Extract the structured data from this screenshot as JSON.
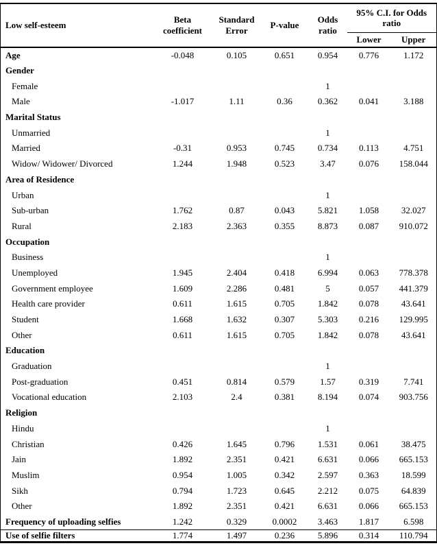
{
  "table": {
    "header": {
      "col_label": "Low self-esteem",
      "col_beta": "Beta coefficient",
      "col_se": "Standard Error",
      "col_p": "P-value",
      "col_or": "Odds ratio",
      "col_ci": "95% C.I. for Odds ratio",
      "col_ci_lower": "Lower",
      "col_ci_upper": "Upper"
    },
    "rows": [
      {
        "label": "Age",
        "bold": true,
        "beta": "-0.048",
        "se": "0.105",
        "p": "0.651",
        "or": "0.954",
        "lower": "0.776",
        "upper": "1.172"
      },
      {
        "label": "Gender",
        "bold": true,
        "beta": "",
        "se": "",
        "p": "",
        "or": "",
        "lower": "",
        "upper": ""
      },
      {
        "label": "Female",
        "bold": false,
        "beta": "",
        "se": "",
        "p": "",
        "or": "1",
        "lower": "",
        "upper": ""
      },
      {
        "label": "Male",
        "bold": false,
        "beta": "-1.017",
        "se": "1.11",
        "p": "0.36",
        "or": "0.362",
        "lower": "0.041",
        "upper": "3.188"
      },
      {
        "label": "Marital Status",
        "bold": true,
        "beta": "",
        "se": "",
        "p": "",
        "or": "",
        "lower": "",
        "upper": ""
      },
      {
        "label": "Unmarried",
        "bold": false,
        "beta": "",
        "se": "",
        "p": "",
        "or": "1",
        "lower": "",
        "upper": ""
      },
      {
        "label": "Married",
        "bold": false,
        "beta": "-0.31",
        "se": "0.953",
        "p": "0.745",
        "or": "0.734",
        "lower": "0.113",
        "upper": "4.751"
      },
      {
        "label": "Widow/ Widower/ Divorced",
        "bold": false,
        "beta": "1.244",
        "se": "1.948",
        "p": "0.523",
        "or": "3.47",
        "lower": "0.076",
        "upper": "158.044"
      },
      {
        "label": "Area of Residence",
        "bold": true,
        "beta": "",
        "se": "",
        "p": "",
        "or": "",
        "lower": "",
        "upper": ""
      },
      {
        "label": "Urban",
        "bold": false,
        "beta": "",
        "se": "",
        "p": "",
        "or": "1",
        "lower": "",
        "upper": ""
      },
      {
        "label": "Sub-urban",
        "bold": false,
        "beta": "1.762",
        "se": "0.87",
        "p": "0.043",
        "or": "5.821",
        "lower": "1.058",
        "upper": "32.027"
      },
      {
        "label": "Rural",
        "bold": false,
        "beta": "2.183",
        "se": "2.363",
        "p": "0.355",
        "or": "8.873",
        "lower": "0.087",
        "upper": "910.072"
      },
      {
        "label": "Occupation",
        "bold": true,
        "beta": "",
        "se": "",
        "p": "",
        "or": "",
        "lower": "",
        "upper": ""
      },
      {
        "label": "Business",
        "bold": false,
        "beta": "",
        "se": "",
        "p": "",
        "or": "1",
        "lower": "",
        "upper": ""
      },
      {
        "label": "Unemployed",
        "bold": false,
        "beta": "1.945",
        "se": "2.404",
        "p": "0.418",
        "or": "6.994",
        "lower": "0.063",
        "upper": "778.378"
      },
      {
        "label": "Government employee",
        "bold": false,
        "beta": "1.609",
        "se": "2.286",
        "p": "0.481",
        "or": "5",
        "lower": "0.057",
        "upper": "441.379"
      },
      {
        "label": "Health care provider",
        "bold": false,
        "beta": "0.611",
        "se": "1.615",
        "p": "0.705",
        "or": "1.842",
        "lower": "0.078",
        "upper": "43.641"
      },
      {
        "label": "Student",
        "bold": false,
        "beta": "1.668",
        "se": "1.632",
        "p": "0.307",
        "or": "5.303",
        "lower": "0.216",
        "upper": "129.995"
      },
      {
        "label": "Other",
        "bold": false,
        "beta": "0.611",
        "se": "1.615",
        "p": "0.705",
        "or": "1.842",
        "lower": "0.078",
        "upper": "43.641"
      },
      {
        "label": "Education",
        "bold": true,
        "beta": "",
        "se": "",
        "p": "",
        "or": "",
        "lower": "",
        "upper": ""
      },
      {
        "label": "Graduation",
        "bold": false,
        "beta": "",
        "se": "",
        "p": "",
        "or": "1",
        "lower": "",
        "upper": ""
      },
      {
        "label": "Post-graduation",
        "bold": false,
        "beta": "0.451",
        "se": "0.814",
        "p": "0.579",
        "or": "1.57",
        "lower": "0.319",
        "upper": "7.741"
      },
      {
        "label": "Vocational education",
        "bold": false,
        "beta": "2.103",
        "se": "2.4",
        "p": "0.381",
        "or": "8.194",
        "lower": "0.074",
        "upper": "903.756"
      },
      {
        "label": "Religion",
        "bold": true,
        "beta": "",
        "se": "",
        "p": "",
        "or": "",
        "lower": "",
        "upper": ""
      },
      {
        "label": "Hindu",
        "bold": false,
        "beta": "",
        "se": "",
        "p": "",
        "or": "1",
        "lower": "",
        "upper": ""
      },
      {
        "label": "Christian",
        "bold": false,
        "beta": "0.426",
        "se": "1.645",
        "p": "0.796",
        "or": "1.531",
        "lower": "0.061",
        "upper": "38.475"
      },
      {
        "label": "Jain",
        "bold": false,
        "beta": "1.892",
        "se": "2.351",
        "p": "0.421",
        "or": "6.631",
        "lower": "0.066",
        "upper": "665.153"
      },
      {
        "label": "Muslim",
        "bold": false,
        "beta": "0.954",
        "se": "1.005",
        "p": "0.342",
        "or": "2.597",
        "lower": "0.363",
        "upper": "18.599"
      },
      {
        "label": "Sikh",
        "bold": false,
        "beta": "0.794",
        "se": "1.723",
        "p": "0.645",
        "or": "2.212",
        "lower": "0.075",
        "upper": "64.839"
      },
      {
        "label": "Other",
        "bold": false,
        "beta": "1.892",
        "se": "2.351",
        "p": "0.421",
        "or": "6.631",
        "lower": "0.066",
        "upper": "665.153"
      },
      {
        "label": "Frequency of uploading selfies",
        "bold": true,
        "beta": "1.242",
        "se": "0.329",
        "p": "0.0002",
        "or": "3.463",
        "lower": "1.817",
        "upper": "6.598"
      },
      {
        "label": "Use of selfie filters",
        "bold": true,
        "separator_above": true,
        "beta": "1.774",
        "se": "1.497",
        "p": "0.236",
        "or": "5.896",
        "lower": "0.314",
        "upper": "110.794"
      }
    ]
  }
}
